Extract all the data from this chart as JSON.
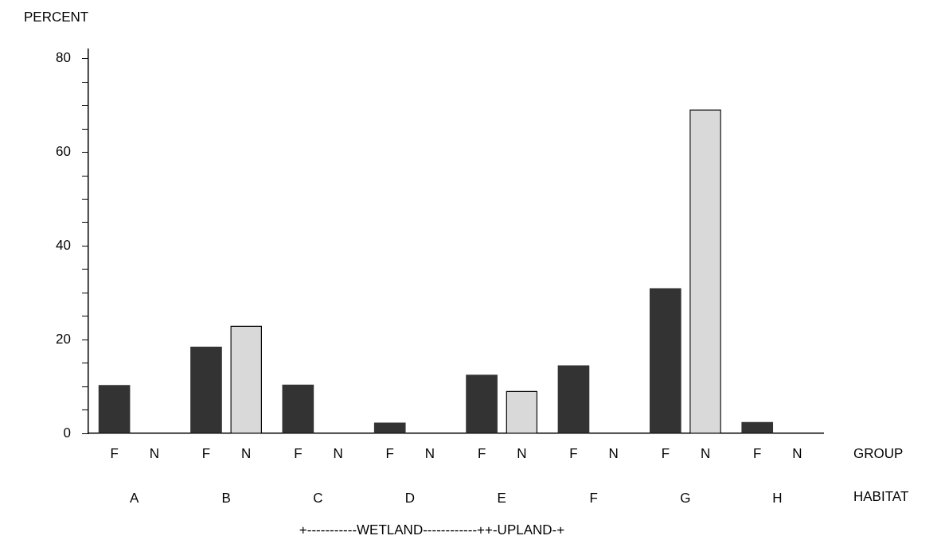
{
  "chart_data": {
    "type": "bar",
    "ylabel": "PERCENT",
    "xlabel": "HABITAT",
    "legend_title": "GROUP",
    "categories": [
      "A",
      "B",
      "C",
      "D",
      "E",
      "F",
      "G",
      "H"
    ],
    "series": [
      {
        "name": "F",
        "color": "#333333",
        "values": [
          10.3,
          18.5,
          10.4,
          2.3,
          12.5,
          14.5,
          31,
          2.4
        ]
      },
      {
        "name": "N",
        "color": "#d9d9d9",
        "values": [
          0,
          23,
          0,
          0,
          9.1,
          0,
          69.2,
          0
        ]
      }
    ],
    "ylim": [
      0,
      82
    ],
    "yticks": [
      0,
      {
        "value": 5,
        "label": null
      },
      {
        "value": 10,
        "label": null
      },
      {
        "value": 15,
        "label": null
      },
      20,
      {
        "value": 25,
        "label": null
      },
      {
        "value": 30,
        "label": null
      },
      {
        "value": 35,
        "label": null
      },
      40,
      {
        "value": 45,
        "label": null
      },
      {
        "value": 50,
        "label": null
      },
      {
        "value": 55,
        "label": null
      },
      60,
      {
        "value": 65,
        "label": null
      },
      {
        "value": 70,
        "label": null
      },
      {
        "value": 75,
        "label": null
      },
      80
    ],
    "grid": false,
    "legend": false,
    "annotations": [
      "+-----------WETLAND------------++-UPLAND-+"
    ]
  }
}
